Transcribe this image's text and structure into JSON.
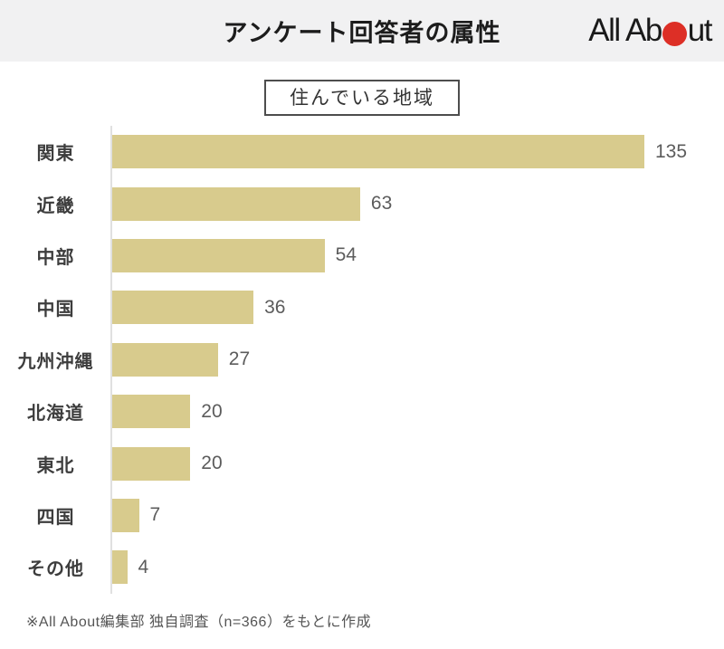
{
  "header": {
    "title": "アンケート回答者の属性",
    "logo": {
      "text_left": "All Ab",
      "text_right": "ut",
      "dot_color": "#dd2f26"
    }
  },
  "subtitle": "住んでいる地域",
  "chart_data": {
    "type": "bar",
    "orientation": "horizontal",
    "title": "住んでいる地域",
    "categories": [
      "関東",
      "近畿",
      "中部",
      "中国",
      "九州沖縄",
      "北海道",
      "東北",
      "四国",
      "その他"
    ],
    "values": [
      135,
      63,
      54,
      36,
      27,
      20,
      20,
      7,
      4
    ],
    "xlabel": "",
    "ylabel": "",
    "xlim": [
      0,
      155
    ],
    "grid": false,
    "legend": false,
    "value_labels_shown": true,
    "bar_color": "#d8cb8d",
    "axis_line_color": "#e0e0e0"
  },
  "footer": {
    "source_note": "※All About編集部 独自調査（n=366）をもとに作成"
  }
}
